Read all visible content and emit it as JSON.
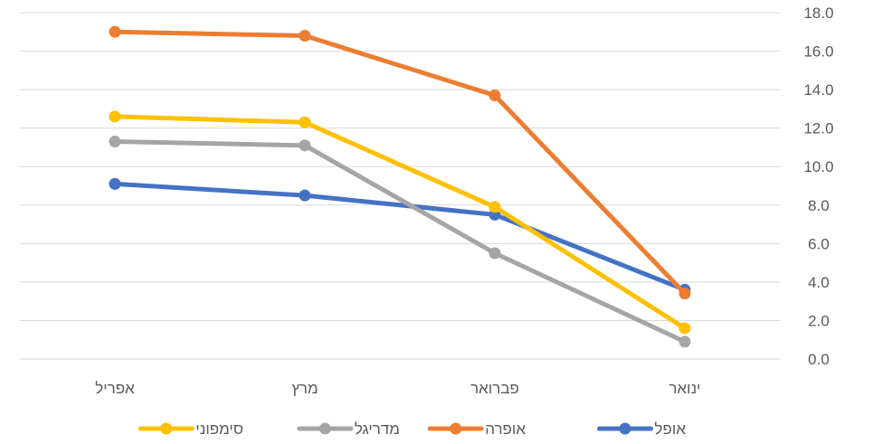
{
  "chart_data": {
    "type": "line",
    "categories": [
      "ינואר",
      "פברואר",
      "מרץ",
      "אפריל"
    ],
    "series": [
      {
        "name": "אופל",
        "color": "#4472C4",
        "values": [
          3.6,
          7.5,
          8.5,
          9.1
        ]
      },
      {
        "name": "אופרה",
        "color": "#ED7D31",
        "values": [
          3.4,
          13.7,
          16.8,
          17.0
        ]
      },
      {
        "name": "מדריגל",
        "color": "#A5A5A5",
        "values": [
          0.9,
          5.5,
          11.1,
          11.3
        ]
      },
      {
        "name": "סימפוני",
        "color": "#FFC000",
        "values": [
          1.6,
          7.9,
          12.3,
          12.6
        ]
      }
    ],
    "ylim": [
      0,
      18
    ],
    "yticks": [
      "0.0",
      "2.0",
      "4.0",
      "6.0",
      "8.0",
      "10.0",
      "12.0",
      "14.0",
      "16.0",
      "18.0"
    ],
    "x_axis_reversed": true,
    "y_axis_position": "right",
    "grid": true,
    "legend_position": "bottom"
  }
}
